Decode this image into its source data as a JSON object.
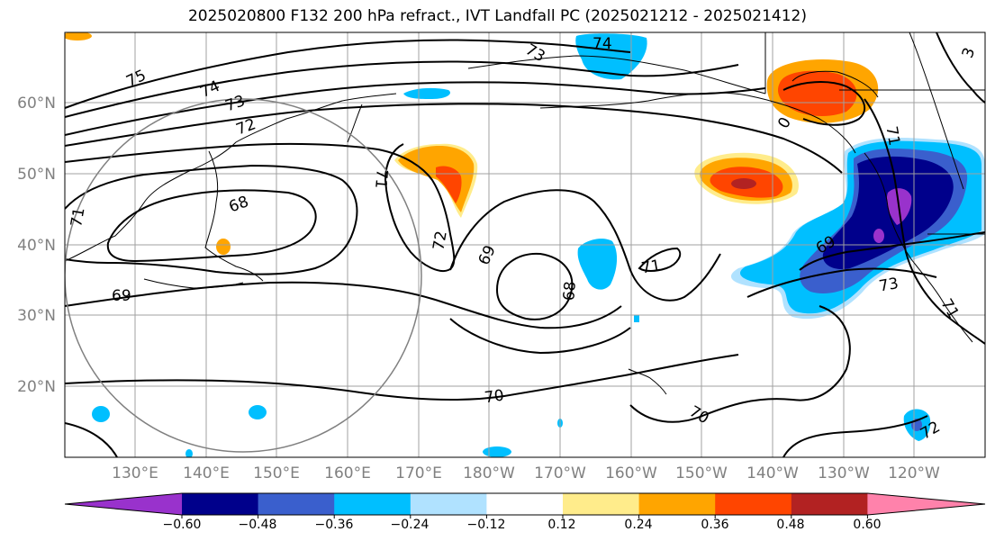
{
  "title": "2025020800 F132 200 hPa refract., IVT Landfall PC (2025021212 - 2025021412)",
  "map": {
    "lat_labels": [
      "60°N",
      "50°N",
      "40°N",
      "30°N",
      "20°N"
    ],
    "lon_labels": [
      "130°E",
      "140°E",
      "150°E",
      "160°E",
      "170°E",
      "180°W",
      "170°W",
      "160°W",
      "150°W",
      "140°W",
      "130°W",
      "120°W"
    ],
    "contour_labels": [
      "75",
      "74",
      "73",
      "72",
      "71",
      "68",
      "69",
      "71",
      "72",
      "69",
      "68",
      "71",
      "70",
      "70",
      "74",
      "73",
      "71",
      "69",
      "73",
      "72",
      "71",
      "0",
      "3"
    ]
  },
  "colorbar": {
    "tick_labels": [
      "−0.60",
      "−0.48",
      "−0.36",
      "−0.24",
      "−0.12",
      "0.12",
      "0.24",
      "0.36",
      "0.48",
      "0.60"
    ],
    "colors": [
      "#9932CC",
      "#00008B",
      "#3A5FCD",
      "#00BFFF",
      "#B0E2FF",
      "#FFFFFF",
      "#FFEC8B",
      "#FFA500",
      "#FF4500",
      "#B22222",
      "#FF82AB"
    ]
  }
}
